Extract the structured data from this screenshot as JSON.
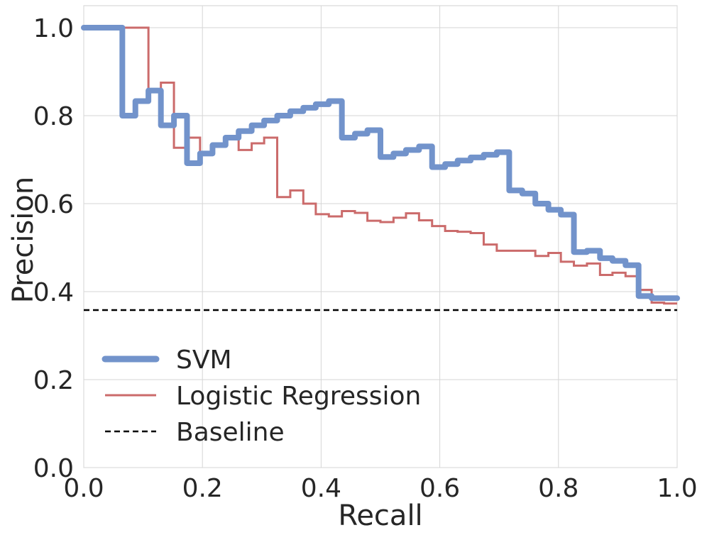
{
  "chart_data": {
    "type": "line",
    "xlabel": "Recall",
    "ylabel": "Precision",
    "xlim": [
      0.0,
      1.0
    ],
    "ylim": [
      0.0,
      1.05
    ],
    "xticks": [
      "0.0",
      "0.2",
      "0.4",
      "0.6",
      "0.8",
      "1.0"
    ],
    "yticks": [
      "0.0",
      "0.2",
      "0.4",
      "0.6",
      "0.8",
      "1.0"
    ],
    "grid": true,
    "legend_position": "lower-left",
    "series": [
      {
        "name": "SVM",
        "color": "#7293cb",
        "style": "solid-thick",
        "x": [
          0.0,
          0.065,
          0.065,
          0.087,
          0.087,
          0.109,
          0.109,
          0.13,
          0.13,
          0.152,
          0.152,
          0.174,
          0.174,
          0.196,
          0.196,
          0.217,
          0.217,
          0.239,
          0.239,
          0.261,
          0.261,
          0.283,
          0.283,
          0.304,
          0.304,
          0.326,
          0.326,
          0.348,
          0.348,
          0.37,
          0.37,
          0.391,
          0.391,
          0.413,
          0.413,
          0.435,
          0.435,
          0.457,
          0.457,
          0.478,
          0.478,
          0.5,
          0.5,
          0.522,
          0.522,
          0.543,
          0.543,
          0.565,
          0.565,
          0.587,
          0.587,
          0.609,
          0.609,
          0.63,
          0.63,
          0.652,
          0.652,
          0.674,
          0.674,
          0.696,
          0.696,
          0.717,
          0.717,
          0.739,
          0.739,
          0.761,
          0.761,
          0.783,
          0.783,
          0.804,
          0.804,
          0.826,
          0.826,
          0.848,
          0.848,
          0.87,
          0.87,
          0.891,
          0.891,
          0.913,
          0.913,
          0.935,
          0.935,
          0.957,
          0.957,
          0.978,
          0.978,
          1.0
        ],
        "y": [
          1.0,
          1.0,
          0.8,
          0.8,
          0.833,
          0.833,
          0.857,
          0.857,
          0.778,
          0.778,
          0.8,
          0.8,
          0.692,
          0.692,
          0.714,
          0.714,
          0.733,
          0.733,
          0.75,
          0.75,
          0.765,
          0.765,
          0.778,
          0.778,
          0.789,
          0.789,
          0.8,
          0.8,
          0.81,
          0.81,
          0.818,
          0.818,
          0.826,
          0.826,
          0.833,
          0.833,
          0.75,
          0.75,
          0.759,
          0.759,
          0.767,
          0.767,
          0.706,
          0.706,
          0.714,
          0.714,
          0.722,
          0.722,
          0.73,
          0.73,
          0.683,
          0.683,
          0.69,
          0.69,
          0.698,
          0.698,
          0.705,
          0.705,
          0.711,
          0.711,
          0.717,
          0.717,
          0.63,
          0.63,
          0.623,
          0.623,
          0.6,
          0.6,
          0.586,
          0.586,
          0.575,
          0.575,
          0.49,
          0.49,
          0.493,
          0.493,
          0.476,
          0.476,
          0.47,
          0.47,
          0.46,
          0.46,
          0.39,
          0.39,
          0.385,
          0.385,
          0.385,
          0.385
        ]
      },
      {
        "name": "Logistic Regression",
        "color": "#cb6b6b",
        "style": "solid-thin",
        "x": [
          0.0,
          0.109,
          0.109,
          0.13,
          0.13,
          0.152,
          0.152,
          0.174,
          0.174,
          0.196,
          0.196,
          0.217,
          0.217,
          0.239,
          0.239,
          0.261,
          0.261,
          0.283,
          0.283,
          0.304,
          0.304,
          0.326,
          0.326,
          0.348,
          0.348,
          0.37,
          0.37,
          0.391,
          0.391,
          0.413,
          0.413,
          0.435,
          0.435,
          0.457,
          0.457,
          0.478,
          0.478,
          0.5,
          0.5,
          0.522,
          0.522,
          0.543,
          0.543,
          0.565,
          0.565,
          0.587,
          0.587,
          0.609,
          0.609,
          0.63,
          0.63,
          0.652,
          0.652,
          0.674,
          0.674,
          0.696,
          0.696,
          0.717,
          0.717,
          0.739,
          0.739,
          0.761,
          0.761,
          0.783,
          0.783,
          0.804,
          0.804,
          0.826,
          0.826,
          0.848,
          0.848,
          0.87,
          0.87,
          0.891,
          0.891,
          0.913,
          0.913,
          0.935,
          0.935,
          0.957,
          0.957,
          0.978,
          0.978,
          1.0
        ],
        "y": [
          1.0,
          1.0,
          0.857,
          0.857,
          0.875,
          0.875,
          0.727,
          0.727,
          0.75,
          0.75,
          0.714,
          0.714,
          0.733,
          0.733,
          0.75,
          0.75,
          0.722,
          0.722,
          0.737,
          0.737,
          0.75,
          0.75,
          0.615,
          0.615,
          0.63,
          0.63,
          0.6,
          0.6,
          0.576,
          0.576,
          0.571,
          0.571,
          0.583,
          0.583,
          0.579,
          0.579,
          0.561,
          0.561,
          0.558,
          0.558,
          0.568,
          0.568,
          0.578,
          0.578,
          0.562,
          0.562,
          0.549,
          0.549,
          0.538,
          0.538,
          0.536,
          0.536,
          0.533,
          0.533,
          0.507,
          0.507,
          0.493,
          0.493,
          0.493,
          0.493,
          0.493,
          0.493,
          0.481,
          0.481,
          0.488,
          0.488,
          0.468,
          0.468,
          0.459,
          0.459,
          0.464,
          0.464,
          0.438,
          0.438,
          0.443,
          0.443,
          0.435,
          0.435,
          0.404,
          0.404,
          0.375,
          0.375,
          0.373,
          0.373
        ]
      },
      {
        "name": "Baseline",
        "color": "#000000",
        "style": "dashed",
        "x": [
          0.0,
          1.0
        ],
        "y": [
          0.358,
          0.358
        ]
      }
    ]
  }
}
